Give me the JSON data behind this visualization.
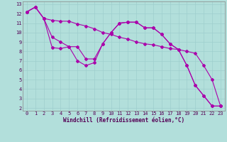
{
  "xlabel": "Windchill (Refroidissement éolien,°C)",
  "bg_color": "#b2dfdb",
  "line_color": "#aa00aa",
  "grid_color": "#9ecece",
  "xlim": [
    -0.5,
    23.5
  ],
  "ylim": [
    1.7,
    13.3
  ],
  "xticks": [
    0,
    1,
    2,
    3,
    4,
    5,
    6,
    7,
    8,
    9,
    10,
    11,
    12,
    13,
    14,
    15,
    16,
    17,
    18,
    19,
    20,
    21,
    22,
    23
  ],
  "yticks": [
    2,
    3,
    4,
    5,
    6,
    7,
    8,
    9,
    10,
    11,
    12,
    13
  ],
  "line1_x": [
    0,
    1,
    2,
    3,
    4,
    5,
    6,
    7,
    8,
    9,
    10,
    11,
    12,
    13,
    14,
    15,
    16,
    17,
    18,
    19,
    20,
    21,
    22,
    23
  ],
  "line1_y": [
    12.2,
    12.7,
    11.5,
    11.3,
    11.2,
    11.2,
    10.9,
    10.7,
    10.4,
    10.0,
    9.8,
    9.5,
    9.3,
    9.0,
    8.8,
    8.7,
    8.5,
    8.3,
    8.2,
    8.0,
    7.8,
    6.5,
    5.0,
    2.2
  ],
  "line2_x": [
    0,
    1,
    2,
    3,
    4,
    5,
    6,
    7,
    8,
    9,
    10,
    11,
    12,
    13,
    14,
    15,
    16,
    17,
    18,
    19,
    20,
    21,
    22,
    23
  ],
  "line2_y": [
    12.2,
    12.7,
    11.5,
    8.4,
    8.3,
    8.5,
    7.0,
    6.5,
    6.8,
    8.8,
    10.0,
    11.0,
    11.1,
    11.1,
    10.5,
    10.5,
    9.8,
    8.8,
    8.2,
    6.5,
    4.4,
    3.3,
    2.2,
    2.2
  ],
  "line3_x": [
    0,
    1,
    2,
    3,
    4,
    5,
    6,
    7,
    8,
    9,
    10,
    11,
    12,
    13,
    14,
    15,
    16,
    17,
    18,
    19,
    20,
    21,
    22,
    23
  ],
  "line3_y": [
    12.2,
    12.7,
    11.5,
    9.5,
    9.0,
    8.5,
    8.5,
    7.2,
    7.2,
    8.8,
    10.0,
    11.0,
    11.1,
    11.1,
    10.5,
    10.5,
    9.8,
    8.8,
    8.2,
    6.5,
    4.4,
    3.3,
    2.2,
    2.2
  ],
  "tick_fontsize": 5.0,
  "xlabel_fontsize": 5.5,
  "marker_size": 2.0
}
